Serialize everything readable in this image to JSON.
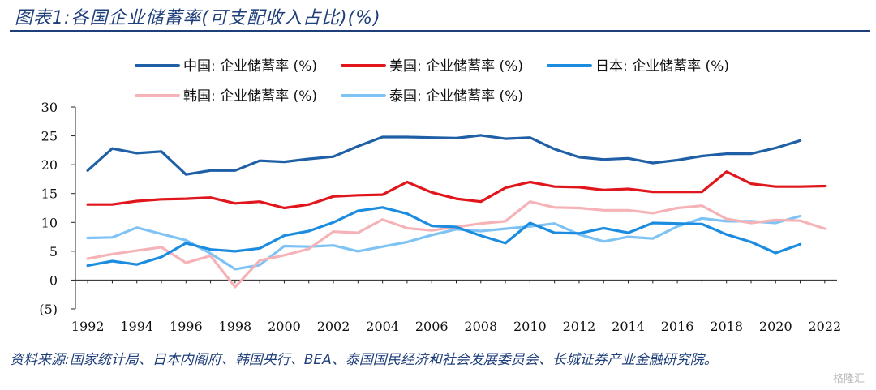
{
  "title": "图表1:各国企业储蓄率(可支配收入占比)(%)",
  "source": "资料来源:国家统计局、日本内阁府、韩国央行、BEA、泰国国民经济和社会发展委员会、长城证券产业金融研究院。",
  "watermark": "格隆汇",
  "chart_data": {
    "type": "line",
    "x": [
      1992,
      1993,
      1994,
      1995,
      1996,
      1997,
      1998,
      1999,
      2000,
      2001,
      2002,
      2003,
      2004,
      2005,
      2006,
      2007,
      2008,
      2009,
      2010,
      2011,
      2012,
      2013,
      2014,
      2015,
      2016,
      2017,
      2018,
      2019,
      2020,
      2021,
      2022
    ],
    "x_tick_labels": [
      "1992",
      "1994",
      "1996",
      "1998",
      "2000",
      "2002",
      "2004",
      "2006",
      "2008",
      "2010",
      "2012",
      "2014",
      "2016",
      "2018",
      "2020",
      "2022"
    ],
    "y_tick_labels": [
      "30",
      "25",
      "20",
      "15",
      "10",
      "5",
      "0",
      "(5)"
    ],
    "ylim": [
      -5,
      30
    ],
    "series": [
      {
        "name": "中国: 企业储蓄率 (%)",
        "color": "#1f5fa6",
        "values": [
          19.0,
          22.8,
          22.0,
          22.3,
          18.3,
          19.0,
          19.0,
          20.7,
          20.5,
          21.0,
          21.4,
          23.2,
          24.8,
          24.8,
          24.7,
          24.6,
          25.1,
          24.5,
          24.7,
          22.7,
          21.3,
          20.9,
          21.1,
          20.3,
          20.8,
          21.5,
          21.9,
          21.9,
          22.9,
          24.2,
          null
        ]
      },
      {
        "name": "美国: 企业储蓄率 (%)",
        "color": "#e0161c",
        "values": [
          13.1,
          13.1,
          13.7,
          14.0,
          14.1,
          14.3,
          13.3,
          13.6,
          12.5,
          13.1,
          14.5,
          14.7,
          14.8,
          17.0,
          15.2,
          14.1,
          13.6,
          16.0,
          17.0,
          16.2,
          16.1,
          15.6,
          15.8,
          15.3,
          15.3,
          15.3,
          18.8,
          16.7,
          16.2,
          16.2,
          16.3
        ]
      },
      {
        "name": "日本: 企业储蓄率 (%)",
        "color": "#1b8ce0",
        "values": [
          2.5,
          3.3,
          2.7,
          4.0,
          6.4,
          5.3,
          5.0,
          5.5,
          7.7,
          8.5,
          10.0,
          12.0,
          12.6,
          11.5,
          9.4,
          9.2,
          7.7,
          6.4,
          9.9,
          8.2,
          8.1,
          9.0,
          8.2,
          9.9,
          9.8,
          9.7,
          7.9,
          6.6,
          4.7,
          6.2,
          null
        ]
      },
      {
        "name": "韩国: 企业储蓄率 (%)",
        "color": "#f5b3b8",
        "values": [
          3.7,
          4.5,
          5.1,
          5.7,
          3.0,
          4.2,
          -1.2,
          3.4,
          4.3,
          5.4,
          8.4,
          8.2,
          10.5,
          9.0,
          8.6,
          9.2,
          9.8,
          10.2,
          13.6,
          12.6,
          12.5,
          12.1,
          12.1,
          11.6,
          12.5,
          12.9,
          10.6,
          9.9,
          10.4,
          10.3,
          8.9
        ]
      },
      {
        "name": "泰国: 企业储蓄率 (%)",
        "color": "#7fc3f5",
        "values": [
          7.3,
          7.4,
          9.1,
          8.0,
          6.9,
          4.6,
          1.9,
          2.6,
          5.9,
          5.8,
          6.0,
          5.0,
          5.8,
          6.6,
          7.8,
          8.8,
          8.5,
          8.9,
          9.3,
          9.8,
          7.9,
          6.7,
          7.5,
          7.2,
          9.3,
          10.7,
          10.2,
          10.2,
          9.9,
          11.1,
          null
        ]
      }
    ]
  }
}
